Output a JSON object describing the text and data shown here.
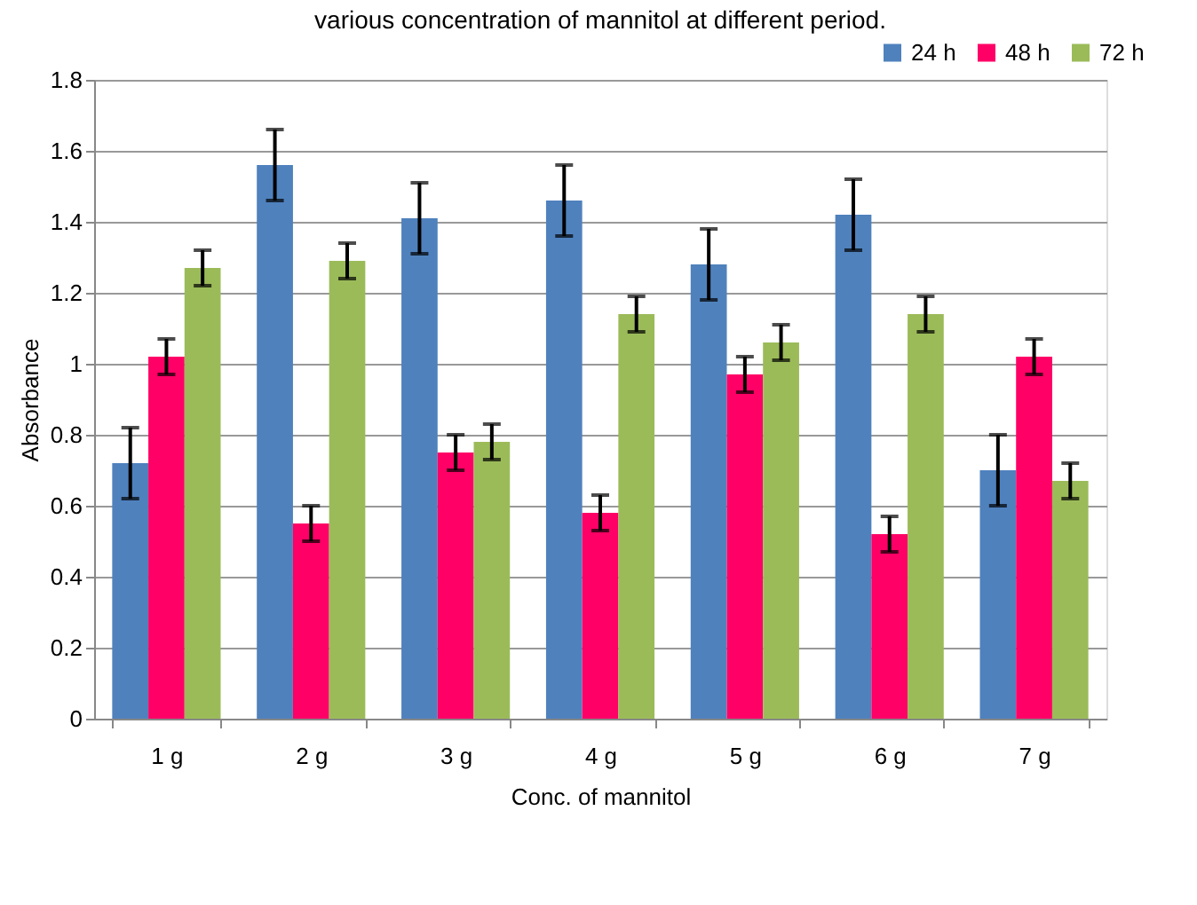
{
  "chart_data": {
    "type": "bar",
    "title": "various concentration of mannitol at different period.",
    "xlabel": "Conc. of mannitol",
    "ylabel": "Absorbance",
    "categories": [
      "1 g",
      "2 g",
      "3 g",
      "4 g",
      "5 g",
      "6 g",
      "7 g"
    ],
    "series": [
      {
        "name": "24 h",
        "color": "#4f81bd",
        "values": [
          0.72,
          1.56,
          1.41,
          1.46,
          1.28,
          1.42,
          0.7
        ],
        "errors": [
          0.1,
          0.1,
          0.1,
          0.1,
          0.1,
          0.1,
          0.1
        ]
      },
      {
        "name": "48 h",
        "color": "#ff0066",
        "values": [
          1.02,
          0.55,
          0.75,
          0.58,
          0.97,
          0.52,
          1.02
        ],
        "errors": [
          0.05,
          0.05,
          0.05,
          0.05,
          0.05,
          0.05,
          0.05
        ]
      },
      {
        "name": "72 h",
        "color": "#9bbb59",
        "values": [
          1.27,
          1.29,
          0.78,
          1.14,
          1.06,
          1.14,
          0.67
        ],
        "errors": [
          0.05,
          0.05,
          0.05,
          0.05,
          0.05,
          0.05,
          0.05
        ]
      }
    ],
    "ylim": [
      0,
      1.8
    ],
    "yticks": [
      0,
      0.2,
      0.4,
      0.6,
      0.8,
      1,
      1.2,
      1.4,
      1.6,
      1.8
    ],
    "grid": "y",
    "legend": "top right"
  }
}
